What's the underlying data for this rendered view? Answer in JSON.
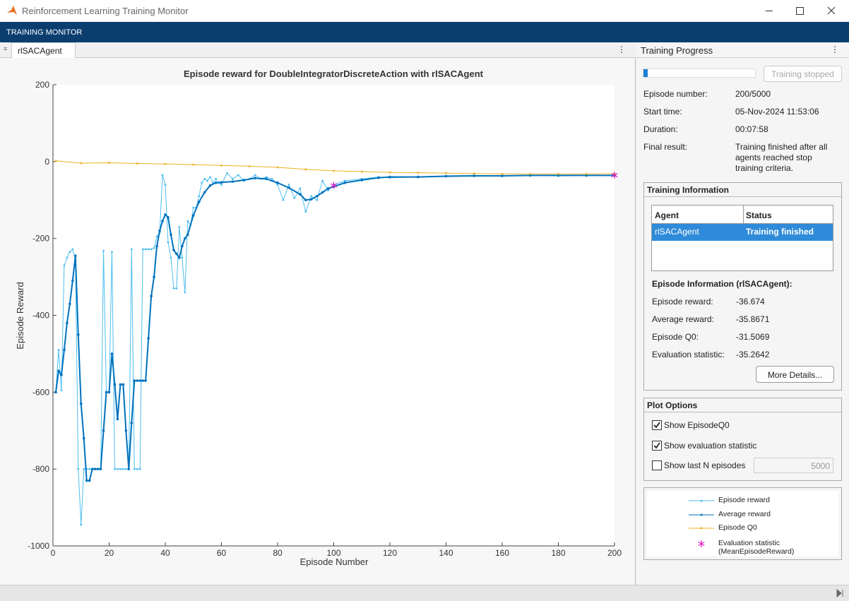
{
  "window": {
    "title": "Reinforcement Learning Training Monitor"
  },
  "toolbar": {
    "title": "TRAINING MONITOR"
  },
  "tab": {
    "label": "rlSACAgent"
  },
  "chart_data": {
    "type": "line",
    "title": "Episode reward for DoubleIntegratorDiscreteAction with rlSACAgent",
    "xlabel": "Episode Number",
    "ylabel": "Episode Reward",
    "xlim": [
      0,
      200
    ],
    "ylim": [
      -1000,
      200
    ],
    "xticks": [
      0,
      20,
      40,
      60,
      80,
      100,
      120,
      140,
      160,
      180,
      200
    ],
    "yticks": [
      -1000,
      -800,
      -600,
      -400,
      -200,
      0,
      200
    ],
    "series": [
      {
        "name": "Episode reward",
        "color": "#4dbeee",
        "marker": "dot",
        "x": [
          1,
          2,
          3,
          4,
          5,
          6,
          7,
          8,
          9,
          10,
          11,
          12,
          13,
          14,
          15,
          16,
          17,
          18,
          19,
          20,
          21,
          22,
          23,
          24,
          25,
          26,
          27,
          28,
          29,
          30,
          31,
          32,
          33,
          34,
          35,
          36,
          37,
          38,
          39,
          40,
          41,
          42,
          43,
          44,
          45,
          46,
          47,
          48,
          49,
          50,
          51,
          52,
          53,
          54,
          55,
          56,
          57,
          58,
          59,
          60,
          62,
          64,
          66,
          68,
          70,
          72,
          74,
          76,
          78,
          80,
          82,
          84,
          86,
          88,
          90,
          92,
          94,
          96,
          98,
          100,
          104,
          110,
          116,
          120,
          130,
          140,
          150,
          160,
          170,
          180,
          190,
          200
        ],
        "values": [
          -600,
          -490,
          -595,
          -270,
          -250,
          -235,
          -228,
          -255,
          -800,
          -945,
          -800,
          -800,
          -800,
          -800,
          -800,
          -800,
          -800,
          -232,
          -600,
          -600,
          -235,
          -800,
          -800,
          -800,
          -800,
          -800,
          -800,
          -228,
          -800,
          -800,
          -800,
          -228,
          -228,
          -228,
          -228,
          -225,
          -195,
          -185,
          -35,
          -60,
          -210,
          -250,
          -330,
          -330,
          -170,
          -250,
          -340,
          -155,
          -165,
          -120,
          -120,
          -90,
          -55,
          -45,
          -50,
          -40,
          -55,
          -45,
          -55,
          -60,
          -30,
          -45,
          -35,
          -50,
          -45,
          -35,
          -45,
          -40,
          -45,
          -60,
          -100,
          -60,
          -95,
          -70,
          -130,
          -90,
          -100,
          -50,
          -75,
          -60,
          -50,
          -45,
          -40,
          -42,
          -40,
          -37,
          -36,
          -38,
          -35,
          -37,
          -36,
          -36.674
        ]
      },
      {
        "name": "Average reward",
        "color": "#0072bd",
        "marker": "dot",
        "x": [
          1,
          2,
          3,
          4,
          5,
          6,
          7,
          8,
          9,
          10,
          11,
          12,
          13,
          14,
          15,
          16,
          17,
          18,
          19,
          20,
          21,
          22,
          23,
          24,
          25,
          26,
          27,
          28,
          29,
          30,
          31,
          32,
          33,
          34,
          35,
          36,
          37,
          38,
          39,
          40,
          41,
          42,
          43,
          44,
          45,
          46,
          47,
          48,
          50,
          52,
          54,
          56,
          58,
          60,
          64,
          68,
          72,
          76,
          80,
          84,
          88,
          90,
          92,
          94,
          96,
          98,
          100,
          104,
          110,
          116,
          120,
          130,
          140,
          150,
          160,
          170,
          180,
          190,
          200
        ],
        "values": [
          -600,
          -545,
          -555,
          -490,
          -420,
          -370,
          -310,
          -245,
          -450,
          -630,
          -720,
          -830,
          -830,
          -800,
          -800,
          -800,
          -800,
          -700,
          -600,
          -600,
          -500,
          -580,
          -670,
          -580,
          -580,
          -700,
          -800,
          -680,
          -570,
          -570,
          -570,
          -570,
          -570,
          -460,
          -350,
          -300,
          -220,
          -180,
          -155,
          -138,
          -145,
          -190,
          -230,
          -240,
          -250,
          -220,
          -200,
          -190,
          -140,
          -105,
          -80,
          -62,
          -55,
          -54,
          -52,
          -48,
          -43,
          -45,
          -55,
          -68,
          -85,
          -100,
          -98,
          -90,
          -80,
          -70,
          -65,
          -55,
          -48,
          -42,
          -40,
          -40,
          -38,
          -37,
          -37,
          -36,
          -36,
          -36,
          -35.8671
        ]
      },
      {
        "name": "Episode Q0",
        "color": "#edb120",
        "marker": "dot",
        "x": [
          1,
          10,
          20,
          30,
          40,
          50,
          60,
          70,
          80,
          90,
          100,
          110,
          120,
          130,
          140,
          150,
          160,
          170,
          180,
          190,
          200
        ],
        "values": [
          2,
          -4,
          -3,
          -5,
          -6,
          -8,
          -10,
          -12,
          -15,
          -20,
          -24,
          -26,
          -28,
          -29,
          -30,
          -31,
          -32,
          -32,
          -32,
          -32,
          -31.5069
        ]
      },
      {
        "name": "Evaluation statistic (MeanEpisodeReward)",
        "color": "#e020c0",
        "marker": "asterisk",
        "line": false,
        "x": [
          100,
          200
        ],
        "values": [
          -62,
          -35.2642
        ]
      }
    ]
  },
  "progress_panel": {
    "title": "Training Progress",
    "button": "Training stopped",
    "fields": [
      {
        "label": "Episode number:",
        "value": "200/5000"
      },
      {
        "label": "Start time:",
        "value": "05-Nov-2024 11:53:06"
      },
      {
        "label": "Duration:",
        "value": "00:07:58"
      },
      {
        "label": "Final result:",
        "value": "Training finished after all agents reached stop training criteria."
      }
    ]
  },
  "training_information": {
    "title": "Training Information",
    "table": {
      "header": [
        "Agent",
        "Status"
      ],
      "rows": [
        [
          "rlSACAgent",
          "Training finished"
        ]
      ]
    },
    "episode_info_title": "Episode Information (rlSACAgent):",
    "fields": [
      {
        "label": "Episode reward:",
        "value": "-36.674"
      },
      {
        "label": "Average reward:",
        "value": "-35.8671"
      },
      {
        "label": "Episode Q0:",
        "value": "-31.5069"
      },
      {
        "label": "Evaluation statistic:",
        "value": "-35.2642"
      }
    ],
    "button": "More Details..."
  },
  "plot_options": {
    "title": "Plot Options",
    "options": [
      {
        "label": "Show EpisodeQ0",
        "checked": true
      },
      {
        "label": "Show evaluation statistic",
        "checked": true
      },
      {
        "label": "Show last N episodes",
        "checked": false
      }
    ],
    "last_n_value": "5000"
  }
}
